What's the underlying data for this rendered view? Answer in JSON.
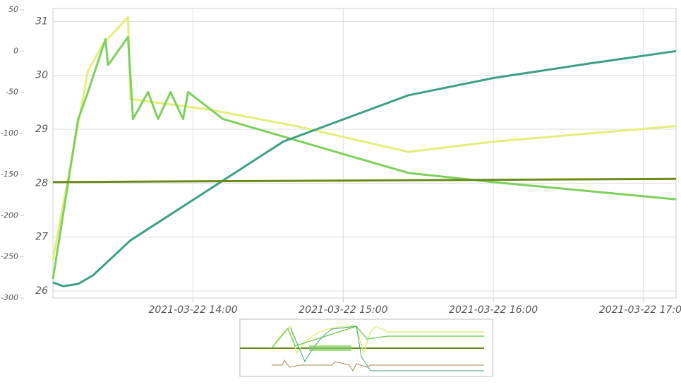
{
  "chart_data": {
    "type": "line",
    "xlim": [
      "2021-03-22 13:04",
      "2021-03-22 17:13"
    ],
    "xticks": [
      "2021-03-22 14:00",
      "2021-03-22 15:00",
      "2021-03-22 16:00",
      "2021-03-22 17:00"
    ],
    "ylim": [
      25.87,
      31.24
    ],
    "yticks": [
      26,
      27,
      28,
      29,
      30,
      31
    ],
    "y2lim": [
      -300,
      51.7
    ],
    "y2ticks": [
      -300,
      -250,
      -200,
      -150,
      -100,
      -50,
      0,
      50
    ],
    "grid": true,
    "series": [
      {
        "color": "#e4ee7c",
        "x": [
          "2021-03-22 13:04",
          "2021-03-22 13:18",
          "2021-03-22 13:24",
          "2021-03-22 13:34",
          "2021-03-22 13:35",
          "2021-03-22 14:07",
          "2021-03-22 14:41",
          "2021-03-22 15:26",
          "2021-03-22 16:00",
          "2021-03-22 17:13"
        ],
        "values": [
          26.58,
          30.08,
          30.58,
          31.08,
          29.56,
          29.36,
          29.06,
          28.58,
          28.77,
          29.06
        ]
      },
      {
        "color": "#7ed05c",
        "x": [
          "2021-03-22 13:04",
          "2021-03-22 13:14",
          "2021-03-22 13:18",
          "2021-03-22 13:25",
          "2021-03-22 13:26",
          "2021-03-22 13:34",
          "2021-03-22 13:36",
          "2021-03-22 13:42",
          "2021-03-22 13:46",
          "2021-03-22 13:51",
          "2021-03-22 13:56",
          "2021-03-22 13:58",
          "2021-03-22 14:12",
          "2021-03-22 15:26",
          "2021-03-22 16:00",
          "2021-03-22 17:13"
        ],
        "values": [
          26.22,
          29.17,
          29.69,
          30.67,
          30.19,
          30.71,
          29.19,
          29.69,
          29.19,
          29.69,
          29.19,
          29.69,
          29.19,
          28.19,
          28.02,
          27.7
        ]
      },
      {
        "color": "#3d9f86",
        "x": [
          "2021-03-22 13:04",
          "2021-03-22 13:08",
          "2021-03-22 13:14",
          "2021-03-22 13:20",
          "2021-03-22 13:35",
          "2021-03-22 13:59",
          "2021-03-22 14:36",
          "2021-03-22 15:26",
          "2021-03-22 16:00",
          "2021-03-22 16:37",
          "2021-03-22 17:13"
        ],
        "values": [
          26.16,
          26.09,
          26.13,
          26.29,
          26.94,
          27.66,
          28.77,
          29.63,
          29.95,
          30.21,
          30.45
        ]
      },
      {
        "color": "#6b8a1a",
        "x": [
          "2021-03-22 13:04",
          "2021-03-22 17:13"
        ],
        "values": [
          28.02,
          28.08
        ]
      }
    ]
  }
}
